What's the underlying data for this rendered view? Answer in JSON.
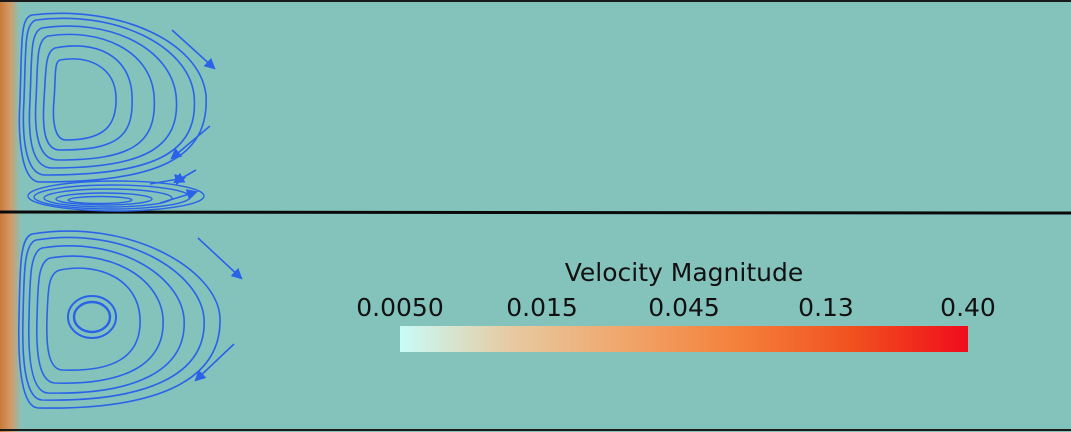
{
  "colors": {
    "background": "#84c3bc",
    "streamline": "#2a63e8",
    "inlet": "#c97a3a",
    "divider": "#0a0a0a",
    "border": "#1a1a1a"
  },
  "colorbar": {
    "title": "Velocity Magnitude",
    "ticks": [
      "0.0050",
      "0.015",
      "0.045",
      "0.13",
      "0.40"
    ],
    "gradient": [
      "#c8fbf8",
      "#e7c9a0",
      "#f0a56a",
      "#f47f3a",
      "#f0501e",
      "#f00c1c"
    ],
    "scale": "log"
  },
  "panels": [
    {
      "name": "upper-channel",
      "arrow-icons": [
        "arrow-down-right-icon",
        "arrow-down-left-icon",
        "arrow-down-left-icon",
        "arrow-right-icon"
      ]
    },
    {
      "name": "lower-channel",
      "arrow-icons": [
        "arrow-down-right-icon",
        "arrow-down-left-icon"
      ]
    }
  ]
}
